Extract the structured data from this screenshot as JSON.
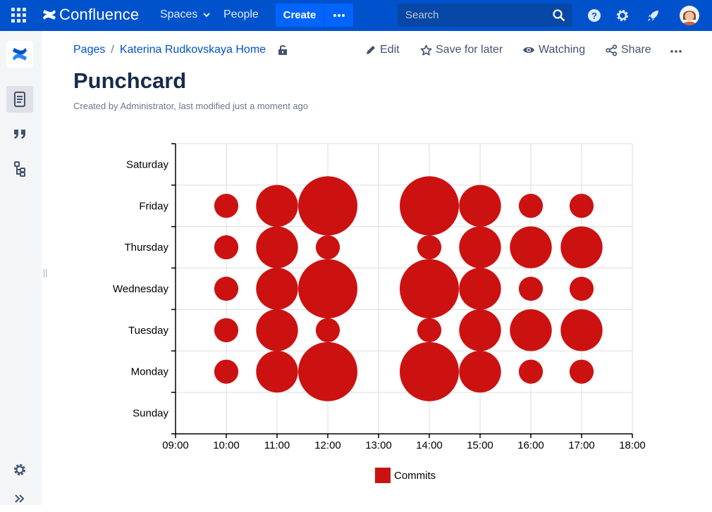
{
  "topnav": {
    "brand": "Confluence",
    "spaces": "Spaces",
    "people": "People",
    "create": "Create",
    "search_placeholder": "Search"
  },
  "sidebar": {
    "items": [
      "confluence-logo-icon",
      "pages-icon",
      "blog-quote-icon",
      "page-tree-icon",
      "settings-icon",
      "expand-icon"
    ]
  },
  "breadcrumb": [
    "Pages",
    "Katerina Rudkovskaya Home"
  ],
  "actions": {
    "edit": "Edit",
    "save": "Save for later",
    "watching": "Watching",
    "share": "Share"
  },
  "page": {
    "title": "Punchcard",
    "byline": "Created by Administrator, last modified just a moment ago"
  },
  "colors": {
    "topnav": "#0052cc",
    "bubble": "#cc1111"
  },
  "chart_data": {
    "type": "scatter",
    "title": "",
    "xlabel": "",
    "ylabel": "",
    "x_ticks": [
      "09:00",
      "10:00",
      "11:00",
      "12:00",
      "13:00",
      "14:00",
      "15:00",
      "16:00",
      "17:00",
      "18:00"
    ],
    "y_categories": [
      "Sunday",
      "Monday",
      "Tuesday",
      "Wednesday",
      "Thursday",
      "Friday",
      "Saturday"
    ],
    "grid": true,
    "legend": "bottom-center",
    "series": [
      {
        "name": "Commits",
        "color": "#cc1111",
        "points": [
          {
            "hour": "10:00",
            "day": "Friday",
            "value": 1
          },
          {
            "hour": "11:00",
            "day": "Friday",
            "value": 3
          },
          {
            "hour": "12:00",
            "day": "Friday",
            "value": 6
          },
          {
            "hour": "14:00",
            "day": "Friday",
            "value": 6
          },
          {
            "hour": "15:00",
            "day": "Friday",
            "value": 3
          },
          {
            "hour": "16:00",
            "day": "Friday",
            "value": 1
          },
          {
            "hour": "17:00",
            "day": "Friday",
            "value": 1
          },
          {
            "hour": "10:00",
            "day": "Thursday",
            "value": 1
          },
          {
            "hour": "11:00",
            "day": "Thursday",
            "value": 3
          },
          {
            "hour": "12:00",
            "day": "Thursday",
            "value": 1
          },
          {
            "hour": "14:00",
            "day": "Thursday",
            "value": 1
          },
          {
            "hour": "15:00",
            "day": "Thursday",
            "value": 3
          },
          {
            "hour": "16:00",
            "day": "Thursday",
            "value": 3
          },
          {
            "hour": "17:00",
            "day": "Thursday",
            "value": 3
          },
          {
            "hour": "10:00",
            "day": "Wednesday",
            "value": 1
          },
          {
            "hour": "11:00",
            "day": "Wednesday",
            "value": 3
          },
          {
            "hour": "12:00",
            "day": "Wednesday",
            "value": 6
          },
          {
            "hour": "14:00",
            "day": "Wednesday",
            "value": 6
          },
          {
            "hour": "15:00",
            "day": "Wednesday",
            "value": 3
          },
          {
            "hour": "16:00",
            "day": "Wednesday",
            "value": 1
          },
          {
            "hour": "17:00",
            "day": "Wednesday",
            "value": 1
          },
          {
            "hour": "10:00",
            "day": "Tuesday",
            "value": 1
          },
          {
            "hour": "11:00",
            "day": "Tuesday",
            "value": 3
          },
          {
            "hour": "12:00",
            "day": "Tuesday",
            "value": 1
          },
          {
            "hour": "14:00",
            "day": "Tuesday",
            "value": 1
          },
          {
            "hour": "15:00",
            "day": "Tuesday",
            "value": 3
          },
          {
            "hour": "16:00",
            "day": "Tuesday",
            "value": 3
          },
          {
            "hour": "17:00",
            "day": "Tuesday",
            "value": 3
          },
          {
            "hour": "10:00",
            "day": "Monday",
            "value": 1
          },
          {
            "hour": "11:00",
            "day": "Monday",
            "value": 3
          },
          {
            "hour": "12:00",
            "day": "Monday",
            "value": 6
          },
          {
            "hour": "14:00",
            "day": "Monday",
            "value": 6
          },
          {
            "hour": "15:00",
            "day": "Monday",
            "value": 3
          },
          {
            "hour": "16:00",
            "day": "Monday",
            "value": 1
          },
          {
            "hour": "17:00",
            "day": "Monday",
            "value": 1
          }
        ]
      }
    ]
  }
}
